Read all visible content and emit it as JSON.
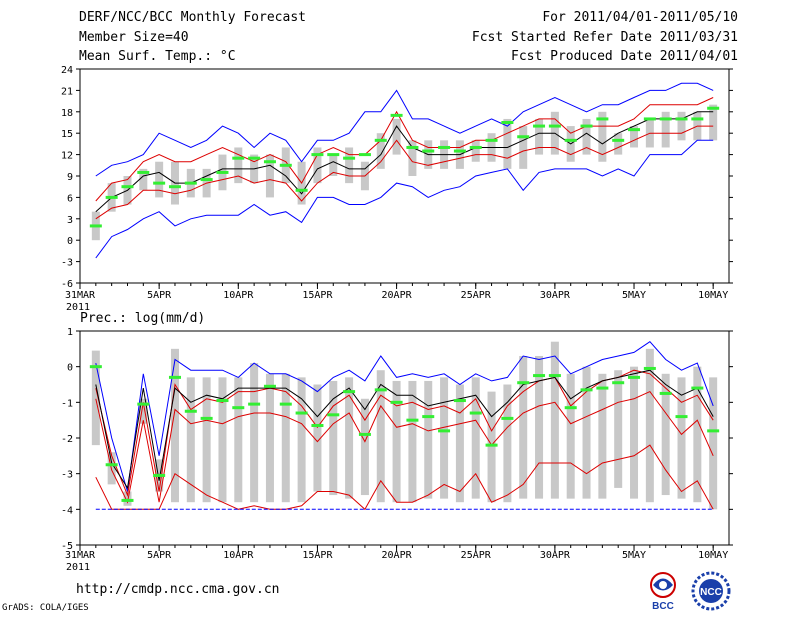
{
  "header": {
    "title": "DERF/NCC/BCC Monthly Forecast",
    "member_size": "Member Size=40",
    "variable": "Mean Surf. Temp.: °C",
    "forecast_period": "For 2011/04/01-2011/05/10",
    "started_refer_date": "Fcst Started Refer Date 2011/03/31",
    "produced_date": "Fcst Produced Date 2011/04/01"
  },
  "footer": {
    "url": "http://cmdp.ncc.cma.gov.cn",
    "grads_label": "GrADS: COLA/IGES",
    "logo_bcc": "BCC",
    "logo_ncc": "NCC"
  },
  "colors": {
    "envelope": "#0000ff",
    "spread": "#dd0000",
    "mean": "#000000",
    "median": "#33ee33",
    "box": "#c8c8c8"
  },
  "chart_data": [
    {
      "type": "box-line",
      "title": "Mean Surf. Temp.: °C",
      "x_tick_labels": [
        "31MAR",
        "5APR",
        "10APR",
        "15APR",
        "20APR",
        "25APR",
        "30APR",
        "5MAY",
        "10MAY"
      ],
      "x_tick_days": [
        0,
        5,
        10,
        15,
        20,
        25,
        30,
        35,
        40
      ],
      "x_year_label": "2011",
      "ylim": [
        -6,
        24
      ],
      "y_ticks": [
        -6,
        -3,
        0,
        3,
        6,
        9,
        12,
        15,
        18,
        21,
        24
      ],
      "days": [
        1,
        2,
        3,
        4,
        5,
        6,
        7,
        8,
        9,
        10,
        11,
        12,
        13,
        14,
        15,
        16,
        17,
        18,
        19,
        20,
        21,
        22,
        23,
        24,
        25,
        26,
        27,
        28,
        29,
        30,
        31,
        32,
        33,
        34,
        35,
        36,
        37,
        38,
        39,
        40
      ],
      "series": [
        {
          "name": "max",
          "role": "envelope",
          "values": [
            9,
            10.5,
            11,
            12,
            15,
            14,
            13,
            14,
            16,
            15,
            13,
            15,
            14,
            11,
            14,
            14,
            15,
            18,
            18,
            21,
            17,
            17,
            16,
            15,
            16,
            17,
            16,
            18,
            19,
            20,
            19,
            18,
            19,
            19,
            20,
            21,
            21,
            22,
            22,
            21
          ]
        },
        {
          "name": "upper",
          "role": "spread",
          "values": [
            5.5,
            8,
            8.5,
            11,
            12,
            11,
            11,
            12,
            13,
            12,
            11,
            12,
            11,
            8,
            12,
            13,
            12,
            12,
            14,
            18,
            14,
            13,
            13,
            13,
            14,
            14,
            15,
            16,
            17,
            17,
            15,
            16,
            16,
            16,
            17,
            19,
            19,
            19,
            19,
            20
          ]
        },
        {
          "name": "mean",
          "role": "mean",
          "values": [
            4,
            6,
            7,
            9,
            9.5,
            8,
            8,
            9,
            10,
            10,
            10,
            10.5,
            9,
            6.5,
            10,
            11,
            10,
            10,
            12,
            16,
            13,
            12,
            12,
            12,
            13,
            13,
            13,
            14,
            15,
            15,
            13.5,
            15,
            13.5,
            15,
            16,
            17,
            17,
            17,
            18,
            18
          ]
        },
        {
          "name": "lower",
          "role": "spread",
          "values": [
            3,
            4.5,
            5,
            7,
            7,
            6.5,
            7,
            8,
            8.5,
            9,
            8,
            8.5,
            8,
            5.5,
            8,
            9.5,
            9,
            9,
            11,
            14,
            11,
            10.5,
            11,
            11.5,
            12,
            12,
            11.5,
            12.5,
            13,
            13,
            12,
            13,
            12,
            13,
            14,
            15,
            15,
            15,
            16,
            16
          ]
        },
        {
          "name": "min",
          "role": "envelope",
          "values": [
            -2.5,
            0.5,
            1.5,
            3,
            4,
            2,
            3,
            3.5,
            3.5,
            3.5,
            5,
            3.5,
            4,
            2.5,
            6,
            6,
            5,
            5,
            6,
            8,
            7.5,
            6,
            7,
            7.5,
            9,
            9.5,
            10,
            7,
            9.5,
            10,
            10,
            10,
            9,
            10,
            9,
            12,
            12,
            12,
            14,
            14
          ]
        },
        {
          "name": "median",
          "role": "median",
          "values": [
            2,
            6,
            7.5,
            9.5,
            8,
            7.5,
            8,
            8.5,
            9.5,
            11.5,
            11.5,
            11,
            10.5,
            7,
            12,
            12,
            11.5,
            12,
            14,
            17.5,
            13,
            12.5,
            13,
            12.5,
            13,
            14,
            16.5,
            14.5,
            16,
            16,
            14,
            16,
            17,
            14,
            15.5,
            17,
            17,
            17,
            17,
            18.5
          ]
        },
        {
          "name": "box_top",
          "role": "box",
          "values": [
            4,
            8,
            9,
            10,
            11,
            11,
            10,
            10,
            12,
            13,
            12,
            12,
            13,
            11,
            13,
            12,
            13,
            11,
            15,
            17,
            14,
            14,
            14,
            14,
            14,
            15,
            17,
            16,
            17,
            18,
            16,
            17,
            18,
            15,
            16,
            17,
            18,
            18,
            18,
            19
          ]
        },
        {
          "name": "box_bottom",
          "role": "box",
          "values": [
            0,
            4,
            5,
            7,
            6,
            5,
            6,
            6,
            7,
            8,
            8,
            6,
            8,
            5,
            8,
            9,
            8,
            7,
            10,
            12,
            9,
            10,
            10,
            10,
            11,
            11,
            10,
            10,
            12,
            12,
            11,
            12,
            11,
            12,
            13,
            13,
            13,
            14,
            14,
            14
          ]
        }
      ]
    },
    {
      "type": "box-line",
      "title": "Prec.: log(mm/d)",
      "x_tick_labels": [
        "31MAR",
        "5APR",
        "10APR",
        "15APR",
        "20APR",
        "25APR",
        "30APR",
        "5MAY",
        "10MAY"
      ],
      "x_tick_days": [
        0,
        5,
        10,
        15,
        20,
        25,
        30,
        35,
        40
      ],
      "x_year_label": "2011",
      "ylim": [
        -5,
        1
      ],
      "y_ticks": [
        -5,
        -4,
        -3,
        -2,
        -1,
        0,
        1
      ],
      "days": [
        1,
        2,
        3,
        4,
        5,
        6,
        7,
        8,
        9,
        10,
        11,
        12,
        13,
        14,
        15,
        16,
        17,
        18,
        19,
        20,
        21,
        22,
        23,
        24,
        25,
        26,
        27,
        28,
        29,
        30,
        31,
        32,
        33,
        34,
        35,
        36,
        37,
        38,
        39,
        40
      ],
      "series": [
        {
          "name": "max",
          "role": "envelope",
          "values": [
            0.1,
            -2,
            -3.5,
            -0.2,
            -2.5,
            0.2,
            -0.1,
            -0.1,
            -0.1,
            -0.3,
            0.1,
            -0.2,
            -0.2,
            -0.4,
            -0.7,
            -0.3,
            -0.1,
            -0.4,
            0.3,
            -0.3,
            -0.2,
            -0.3,
            -0.2,
            -0.5,
            -0.2,
            -0.4,
            -0.3,
            0.3,
            0.2,
            0.3,
            -0.2,
            0,
            0.2,
            0.3,
            0.4,
            0.7,
            0.2,
            -0.1,
            0.1,
            -1.1
          ]
        },
        {
          "name": "upper",
          "role": "spread",
          "values": [
            -0.6,
            -2.5,
            -3.6,
            -1,
            -3.5,
            -0.5,
            -1.2,
            -0.9,
            -1,
            -0.7,
            -0.7,
            -0.6,
            -0.7,
            -1.1,
            -1.7,
            -1.1,
            -0.8,
            -1.5,
            -0.8,
            -1.1,
            -1,
            -1.2,
            -1.1,
            -1.3,
            -0.9,
            -1.8,
            -1.1,
            -0.7,
            -0.4,
            -0.3,
            -1.1,
            -0.7,
            -0.4,
            -0.3,
            -0.1,
            -0.2,
            -0.6,
            -1,
            -0.8,
            -1.5
          ]
        },
        {
          "name": "mean",
          "role": "mean",
          "values": [
            -0.5,
            -2.7,
            -3.4,
            -0.6,
            -3.2,
            -0.6,
            -1,
            -0.8,
            -0.9,
            -0.6,
            -0.6,
            -0.6,
            -0.6,
            -0.9,
            -1.4,
            -0.9,
            -0.6,
            -1.2,
            -0.5,
            -0.8,
            -0.8,
            -1.1,
            -1,
            -0.9,
            -0.8,
            -1.4,
            -1,
            -0.5,
            -0.4,
            -0.3,
            -0.9,
            -0.6,
            -0.4,
            -0.3,
            -0.2,
            -0.1,
            -0.5,
            -0.8,
            -0.6,
            -1.4
          ]
        },
        {
          "name": "lower",
          "role": "spread",
          "values": [
            -0.9,
            -2.9,
            -3.8,
            -1.5,
            -3.8,
            -1.2,
            -1.6,
            -1.5,
            -1.6,
            -1.4,
            -1.3,
            -1.3,
            -1.4,
            -1.6,
            -2.1,
            -1.6,
            -1.3,
            -2.1,
            -1.1,
            -1.7,
            -1.6,
            -1.8,
            -1.7,
            -1.6,
            -1.5,
            -2.2,
            -1.7,
            -1.3,
            -1.1,
            -1,
            -1.6,
            -1.4,
            -1.2,
            -1,
            -0.9,
            -0.7,
            -1.3,
            -1.9,
            -1.5,
            -2.5
          ]
        },
        {
          "name": "low_tail",
          "role": "spread",
          "values": [
            -3.1,
            -4,
            -4,
            -4,
            -4,
            -3,
            -3.3,
            -3.6,
            -3.8,
            -4,
            -3.9,
            -4,
            -4,
            -3.9,
            -3.5,
            -3.5,
            -3.6,
            -4,
            -3.2,
            -3.8,
            -3.8,
            -3.6,
            -3.3,
            -3.5,
            -3,
            -3.8,
            -3.6,
            -3.3,
            -2.7,
            -2.7,
            -2.7,
            -3,
            -2.7,
            -2.6,
            -2.5,
            -2.2,
            -2.9,
            -3.5,
            -3.2,
            -4
          ]
        },
        {
          "name": "min",
          "role": "envelope",
          "values": [
            -4,
            -4,
            -4,
            -4,
            -4,
            -4,
            -4,
            -4,
            -4,
            -4,
            -4,
            -4,
            -4,
            -4,
            -4,
            -4,
            -4,
            -4,
            -4,
            -4,
            -4,
            -4,
            -4,
            -4,
            -4,
            -4,
            -4,
            -4,
            -4,
            -4,
            -4,
            -4,
            -4,
            -4,
            -4,
            -4,
            -4,
            -4,
            -4,
            -4
          ]
        },
        {
          "name": "median",
          "role": "median",
          "values": [
            0,
            -2.75,
            -3.75,
            -1.05,
            -3.05,
            -0.3,
            -1.25,
            -1.45,
            -0.95,
            -1.15,
            -1.05,
            -0.55,
            -1.05,
            -1.3,
            -1.65,
            -1.35,
            -0.7,
            -1.9,
            -0.65,
            -1,
            -1.5,
            -1.4,
            -1.8,
            -0.95,
            -1.3,
            -2.2,
            -1.45,
            -0.45,
            -0.25,
            -0.25,
            -1.15,
            -0.65,
            -0.6,
            -0.45,
            -0.3,
            -0.05,
            -0.75,
            -1.4,
            -0.6,
            -1.8
          ]
        },
        {
          "name": "box_top",
          "role": "box",
          "values": [
            0.45,
            -2.4,
            -3.5,
            -0.9,
            -2.6,
            0.5,
            -0.3,
            -0.3,
            -0.3,
            -0.3,
            0.1,
            -0.2,
            -0.2,
            -0.3,
            -0.5,
            -0.4,
            -0.3,
            -0.9,
            -0.1,
            -0.4,
            -0.4,
            -0.4,
            -0.3,
            -0.5,
            -0.3,
            -0.7,
            -0.5,
            0.3,
            0.3,
            0.7,
            -0.2,
            0,
            -0.2,
            -0.1,
            0,
            0.5,
            -0.2,
            -0.3,
            0,
            -0.3
          ]
        },
        {
          "name": "box_bottom",
          "role": "box",
          "values": [
            -2.2,
            -3.3,
            -3.9,
            -1.6,
            -3.5,
            -3.8,
            -3.8,
            -3.8,
            -3.8,
            -3.8,
            -3.8,
            -3.8,
            -3.8,
            -3.8,
            -3.5,
            -3.6,
            -3.7,
            -3.6,
            -3.8,
            -3.8,
            -3.8,
            -3.7,
            -3.7,
            -3.8,
            -3.7,
            -3.8,
            -3.8,
            -3.7,
            -3.7,
            -3.7,
            -3.7,
            -3.7,
            -3.7,
            -3.4,
            -3.7,
            -3.8,
            -3.6,
            -3.7,
            -3.8,
            -4
          ]
        }
      ]
    }
  ]
}
